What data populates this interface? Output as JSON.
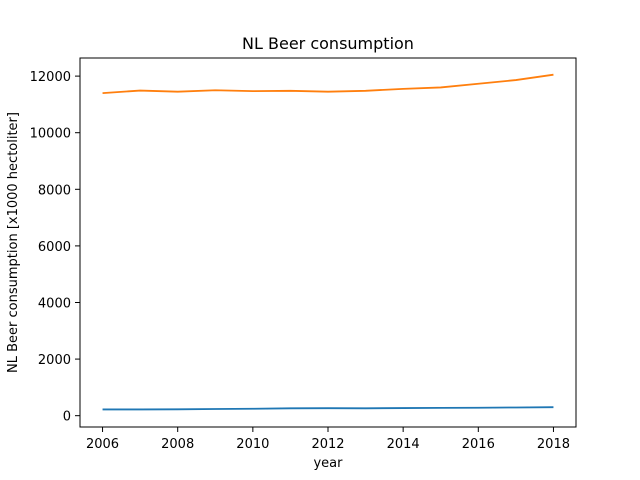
{
  "chart_data": {
    "type": "line",
    "title": "NL Beer consumption",
    "xlabel": "year",
    "ylabel": "NL Beer consumption [x1000 hectoliter]",
    "x": [
      2006,
      2007,
      2008,
      2009,
      2010,
      2011,
      2012,
      2013,
      2014,
      2015,
      2016,
      2017,
      2018
    ],
    "xlim": [
      2005.4,
      2018.6
    ],
    "ylim": [
      -400,
      12640
    ],
    "xticks": [
      2006,
      2008,
      2010,
      2012,
      2014,
      2016,
      2018
    ],
    "yticks": [
      0,
      2000,
      4000,
      6000,
      8000,
      10000,
      12000
    ],
    "grid": false,
    "series": [
      {
        "color": "#1f77b4",
        "values": [
          220,
          220,
          225,
          235,
          245,
          260,
          265,
          260,
          270,
          275,
          280,
          290,
          300
        ]
      },
      {
        "color": "#ff7f0e",
        "values": [
          11400,
          11490,
          11450,
          11500,
          11470,
          11480,
          11450,
          11480,
          11550,
          11600,
          11730,
          11860,
          12050
        ]
      }
    ]
  }
}
